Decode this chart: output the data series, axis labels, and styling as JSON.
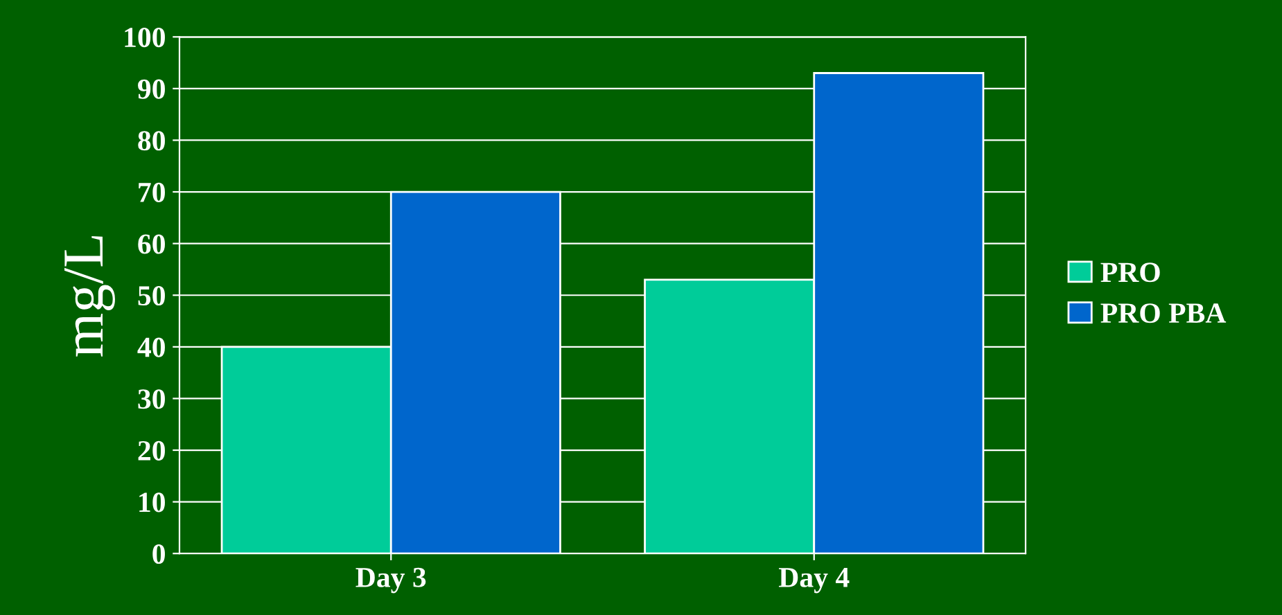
{
  "chart_data": {
    "type": "bar",
    "ylabel": "mg/L",
    "categories": [
      "Day 3",
      "Day 4"
    ],
    "series": [
      {
        "name": "PRO",
        "color": "#00cc99",
        "values": [
          40,
          53
        ]
      },
      {
        "name": "PRO PBA",
        "color": "#0066cc",
        "values": [
          70,
          93
        ]
      }
    ],
    "ylim": [
      0,
      100
    ],
    "yticks": [
      0,
      10,
      20,
      30,
      40,
      50,
      60,
      70,
      80,
      90,
      100
    ],
    "grid": "y",
    "legend": "right"
  }
}
